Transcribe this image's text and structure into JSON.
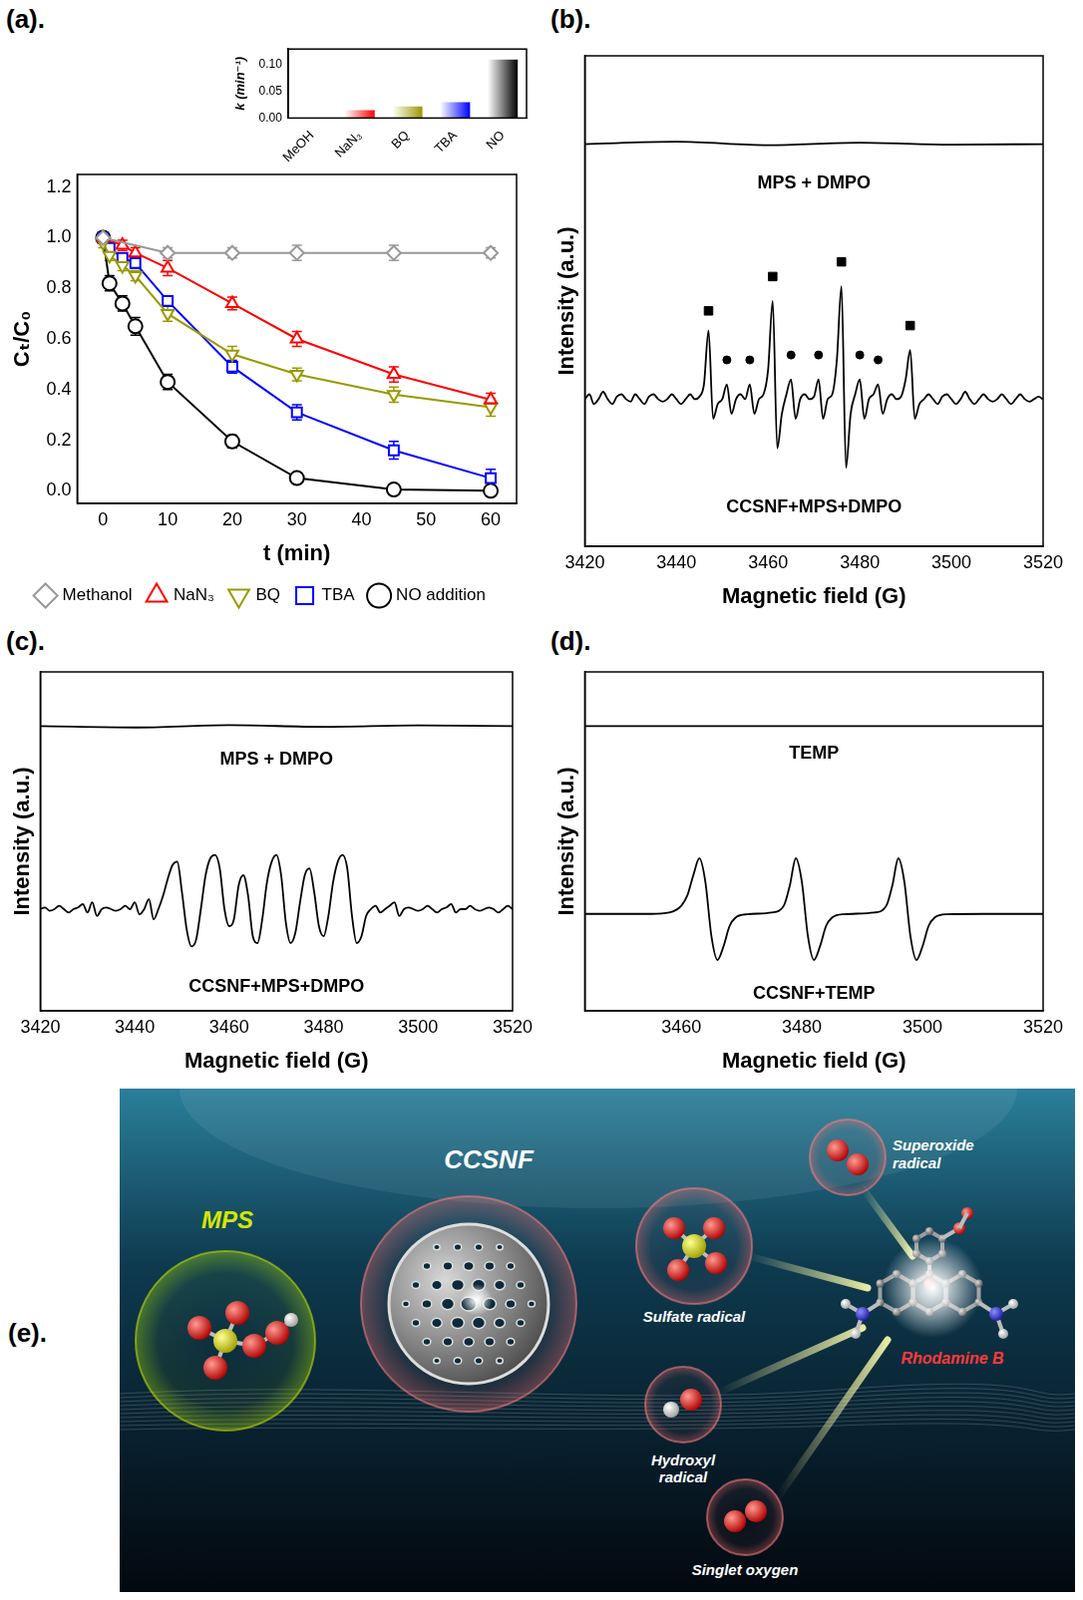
{
  "chart_data": [
    {
      "panel_label": "(a).",
      "type": "line",
      "x_label": "t (min)",
      "y_label": "Cₜ/C₀",
      "xlim": [
        -4,
        64
      ],
      "xticks": [
        0,
        10,
        20,
        30,
        40,
        50,
        60
      ],
      "ylim": [
        -0.05,
        1.25
      ],
      "yticks": [
        {
          "value": 0,
          "label": "0.0"
        },
        0.2,
        0.4,
        0.6,
        0.8,
        {
          "value": 1,
          "label": "1.0"
        },
        1.2
      ],
      "grid": false,
      "legend": "bottom",
      "series": [
        {
          "name": "Methanol",
          "color": "#999999",
          "marker": "diamond",
          "x": [
            0,
            10,
            20,
            30,
            45,
            60
          ],
          "values": [
            1.0,
            0.94,
            0.94,
            0.94,
            0.94,
            0.94
          ],
          "errors": [
            0.02,
            0.02,
            0.02,
            0.03,
            0.03,
            0.02
          ]
        },
        {
          "name": "NaN₃",
          "color": "#ff0000",
          "marker": "triangle-up",
          "x": [
            0,
            3,
            5,
            10,
            20,
            30,
            45,
            60
          ],
          "values": [
            1.0,
            0.97,
            0.94,
            0.88,
            0.74,
            0.6,
            0.46,
            0.36
          ],
          "errors": [
            0.02,
            0.02,
            0.02,
            0.03,
            0.025,
            0.03,
            0.03,
            0.025
          ]
        },
        {
          "name": "BQ",
          "color": "#999900",
          "marker": "triangle-down",
          "x": [
            0,
            1,
            3,
            5,
            10,
            20,
            30,
            45,
            60
          ],
          "values": [
            0.98,
            0.93,
            0.89,
            0.85,
            0.7,
            0.54,
            0.46,
            0.38,
            0.33
          ],
          "errors": [
            0.02,
            0.02,
            0.02,
            0.02,
            0.03,
            0.03,
            0.025,
            0.03,
            0.035
          ]
        },
        {
          "name": "TBA",
          "color": "#0000ff",
          "marker": "square",
          "x": [
            0,
            1,
            3,
            5,
            10,
            20,
            30,
            45,
            60
          ],
          "values": [
            1.0,
            0.96,
            0.92,
            0.9,
            0.75,
            0.49,
            0.31,
            0.16,
            0.05
          ],
          "errors": [
            0.02,
            0.02,
            0.02,
            0.02,
            0.02,
            0.025,
            0.03,
            0.035,
            0.035
          ]
        },
        {
          "name": "NO addition",
          "color": "#000000",
          "marker": "circle",
          "x": [
            0,
            1,
            3,
            5,
            10,
            20,
            30,
            45,
            60
          ],
          "values": [
            1.0,
            0.82,
            0.74,
            0.65,
            0.43,
            0.195,
            0.05,
            0.005,
            0.0
          ],
          "errors": [
            0.02,
            0.03,
            0.03,
            0.035,
            0.03,
            0.025,
            0.02,
            0.015,
            0.01
          ]
        }
      ],
      "inset": {
        "type": "bar",
        "y_label": "k (min⁻¹)",
        "categories": [
          "MeOH",
          "NaN₃",
          "BQ",
          "TBA",
          "NO"
        ],
        "values": [
          0.001,
          0.015,
          0.022,
          0.03,
          0.11
        ],
        "colors": [
          "#999999",
          "#ff0000",
          "#999900",
          "#0000ff",
          "#000000"
        ],
        "ylim": [
          0,
          0.13
        ],
        "yticks": [
          {
            "value": 0,
            "label": "0.00"
          },
          0.05,
          {
            "value": 0.1,
            "label": "0.10"
          }
        ],
        "grid": false
      }
    },
    {
      "panel_label": "(b).",
      "type": "line",
      "x_label": "Magnetic field (G)",
      "y_label": "Intensity (a.u.)",
      "xlim": [
        3420,
        3520
      ],
      "xticks": [
        3420,
        3440,
        3460,
        3480,
        3500,
        3520
      ],
      "ylim": [
        0,
        100
      ],
      "grid": false,
      "tick_labels": "x",
      "annotations": [
        {
          "text": "MPS + DMPO",
          "x": 3470,
          "y": 74
        },
        {
          "text": "CCSNF+MPS+DMPO",
          "x": 3470,
          "y": 8
        }
      ],
      "series": [
        {
          "color": "#000000",
          "x": [
            3420,
            3440,
            3460,
            3480,
            3500,
            3520
          ],
          "values": [
            82,
            82.5,
            81.8,
            82.3,
            81.9,
            82
          ]
        },
        {
          "color": "#000000",
          "x": [
            3420,
            3421,
            3422,
            3423,
            3424,
            3425,
            3426,
            3427,
            3428,
            3429,
            3430,
            3431,
            3432,
            3433,
            3434,
            3435,
            3436,
            3437,
            3438,
            3439,
            3440,
            3441,
            3442,
            3443,
            3444,
            3445,
            3446,
            3447,
            3448,
            3449,
            3450,
            3451,
            3452,
            3453,
            3454,
            3455,
            3456,
            3457,
            3458,
            3459,
            3460,
            3461,
            3462,
            3463,
            3464,
            3465,
            3466,
            3467,
            3468,
            3469,
            3470,
            3471,
            3472,
            3473,
            3474,
            3475,
            3476,
            3477,
            3478,
            3479,
            3480,
            3481,
            3482,
            3483,
            3484,
            3485,
            3486,
            3487,
            3488,
            3489,
            3490,
            3491,
            3492,
            3493,
            3494,
            3495,
            3496,
            3497,
            3498,
            3499,
            3500,
            3501,
            3502,
            3503,
            3504,
            3505,
            3506,
            3507,
            3508,
            3509,
            3510,
            3511,
            3512,
            3513,
            3514,
            3515,
            3516,
            3517,
            3518,
            3519,
            3520
          ],
          "values": [
            30,
            31,
            29,
            30,
            31.5,
            30,
            29,
            30.5,
            31,
            30,
            29.5,
            31,
            30,
            29,
            30.5,
            31,
            30,
            29.5,
            30,
            31,
            30,
            29,
            30,
            31,
            30,
            30.5,
            33,
            44,
            26,
            29,
            30,
            33,
            27,
            30,
            31,
            30,
            33,
            27,
            30,
            31,
            36,
            50,
            20,
            27,
            31,
            34,
            26,
            30,
            31,
            30,
            30.5,
            34,
            26,
            30,
            31,
            38,
            53,
            16,
            27,
            31,
            34,
            26,
            30,
            31,
            33,
            27,
            30,
            31,
            30,
            30.5,
            34,
            40,
            26,
            29,
            30,
            31,
            30,
            29,
            30.5,
            31,
            30,
            29,
            30,
            31.5,
            30,
            29,
            30,
            31,
            30,
            29.5,
            30,
            31,
            30,
            29,
            30,
            31,
            30,
            29.5,
            30,
            30.5,
            30
          ]
        },
        {
          "type": "scatter",
          "marker": "square",
          "color": "#000000",
          "x": [
            3447,
            3461,
            3476,
            3491
          ],
          "values": [
            48,
            55,
            58,
            45
          ]
        },
        {
          "type": "scatter",
          "marker": "circle",
          "color": "#000000",
          "x": [
            3451,
            3456,
            3465,
            3471,
            3480,
            3484
          ],
          "values": [
            38,
            38,
            39,
            39,
            39,
            38
          ]
        }
      ]
    },
    {
      "panel_label": "(c).",
      "type": "line",
      "x_label": "Magnetic field (G)",
      "y_label": "Intensity (a.u.)",
      "xlim": [
        3420,
        3520
      ],
      "xticks": [
        3420,
        3440,
        3460,
        3480,
        3500,
        3520
      ],
      "ylim": [
        0,
        100
      ],
      "grid": false,
      "tick_labels": "x",
      "annotations": [
        {
          "text": "MPS + DMPO",
          "x": 3470,
          "y": 74
        },
        {
          "text": "CCSNF+MPS+DMPO",
          "x": 3470,
          "y": 7
        }
      ],
      "series": [
        {
          "color": "#000000",
          "x": [
            3420,
            3440,
            3460,
            3480,
            3500,
            3520
          ],
          "values": [
            84,
            83.6,
            84.3,
            83.8,
            84.2,
            84
          ]
        },
        {
          "color": "#000000",
          "x": [
            3420,
            3421,
            3422,
            3423,
            3424,
            3425,
            3426,
            3427,
            3428,
            3429,
            3430,
            3431,
            3432,
            3433,
            3434,
            3435,
            3436,
            3437,
            3438,
            3439,
            3440,
            3441,
            3442,
            3443,
            3444,
            3445,
            3446,
            3447,
            3448,
            3449,
            3450,
            3451,
            3452,
            3453,
            3454,
            3455,
            3456,
            3457,
            3458,
            3459,
            3460,
            3461,
            3462,
            3463,
            3464,
            3465,
            3466,
            3467,
            3468,
            3469,
            3470,
            3471,
            3472,
            3473,
            3474,
            3475,
            3476,
            3477,
            3478,
            3479,
            3480,
            3481,
            3482,
            3483,
            3484,
            3485,
            3486,
            3487,
            3488,
            3489,
            3490,
            3491,
            3492,
            3493,
            3494,
            3495,
            3496,
            3497,
            3498,
            3499,
            3500,
            3501,
            3502,
            3503,
            3504,
            3505,
            3506,
            3507,
            3508,
            3509,
            3510,
            3511,
            3512,
            3513,
            3514,
            3515,
            3516,
            3517,
            3518,
            3519,
            3520
          ],
          "values": [
            30,
            30.5,
            29.5,
            30,
            31,
            30,
            29,
            30,
            30.5,
            31.5,
            29,
            32,
            28,
            30,
            30.5,
            30,
            29.5,
            30,
            31,
            30,
            32,
            28.5,
            30,
            33,
            27,
            30,
            34,
            39,
            43,
            44,
            35,
            24,
            19,
            21,
            30,
            40,
            45,
            46,
            42,
            30,
            25,
            27,
            37,
            40,
            34,
            22,
            20,
            27,
            38,
            44,
            46,
            40,
            26,
            20,
            23,
            32,
            40,
            42,
            35,
            25,
            22,
            28,
            38,
            44,
            46,
            42,
            28,
            20,
            22,
            28,
            30,
            31,
            29,
            30,
            31,
            32,
            28,
            30,
            30.5,
            30,
            29.5,
            30,
            31,
            30,
            29,
            30,
            30.5,
            31.5,
            29,
            30,
            30,
            31,
            30,
            29.5,
            30,
            30.5,
            30,
            29,
            30,
            31,
            30
          ]
        }
      ]
    },
    {
      "panel_label": "(d).",
      "type": "line",
      "x_label": "Magnetic field (G)",
      "y_label": "Intensity (a.u.)",
      "xlim": [
        3444,
        3520
      ],
      "xticks": [
        3460,
        3480,
        3500,
        3520
      ],
      "ylim": [
        0,
        100
      ],
      "grid": false,
      "tick_labels": "x",
      "annotations": [
        {
          "text": "TEMP",
          "x": 3482,
          "y": 76
        },
        {
          "text": "CCSNF+TEMP",
          "x": 3482,
          "y": 5
        }
      ],
      "series": [
        {
          "color": "#000000",
          "x": [
            3444,
            3520
          ],
          "values": [
            84,
            84
          ]
        },
        {
          "color": "#000000",
          "x": [
            3444,
            3455,
            3458,
            3460,
            3461,
            3462,
            3463,
            3464,
            3465,
            3466,
            3467,
            3468,
            3469,
            3471,
            3475,
            3477,
            3478,
            3479,
            3480,
            3481,
            3482,
            3483,
            3484,
            3485,
            3487,
            3492,
            3494,
            3495,
            3496,
            3497,
            3498,
            3499,
            3500,
            3501,
            3502,
            3504,
            3510,
            3520
          ],
          "values": [
            28.6,
            28.6,
            29,
            31,
            34,
            40,
            45,
            38,
            22,
            15,
            19,
            25,
            27.5,
            28.5,
            29,
            31,
            37,
            45,
            38,
            22,
            15,
            19,
            25,
            27.5,
            28.5,
            29,
            31,
            37,
            45,
            38,
            22,
            15,
            19,
            25,
            27.5,
            28.5,
            28.6,
            28.6
          ]
        }
      ]
    }
  ],
  "illustration": {
    "panel_label": "(e).",
    "labels": {
      "mps": "MPS",
      "ccsnf": "CCSNF",
      "sulfate": "Sulfate radical",
      "superoxide": "Superoxide radical",
      "hydroxyl": "Hydroxyl radical",
      "singlet": "Singlet oxygen",
      "rhodamine": "Rhodamine B"
    }
  }
}
